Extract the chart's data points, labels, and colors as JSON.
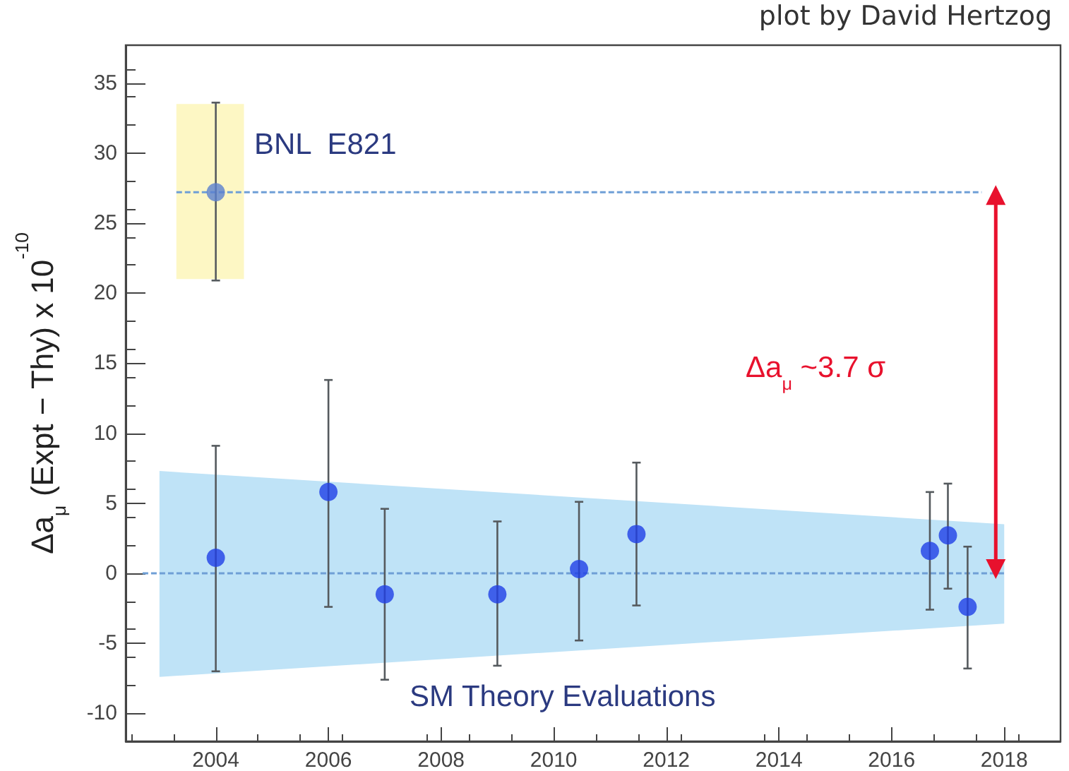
{
  "chart_data": {
    "type": "scatter",
    "ylabel": "Δa$_{μ}$ (Expt − Thy) x 10$^{-10}$",
    "xlim": [
      2002.4,
      2019
    ],
    "xticks": [
      2004,
      2006,
      2008,
      2010,
      2012,
      2014,
      2016,
      2018
    ],
    "ylim": [
      -12,
      37.7
    ],
    "yticks": [
      -10,
      -5,
      0,
      5,
      10,
      15,
      20,
      25,
      30,
      35
    ],
    "grid": false,
    "marker": "circle",
    "series": [
      {
        "type": "area",
        "color": "#bfe3f7",
        "x": [
          2003.0,
          2018.0
        ],
        "values": [
          null,
          null
        ],
        "lower": [
          -7.4,
          -3.6
        ],
        "upper": [
          7.3,
          3.5
        ]
      },
      {
        "type": "area",
        "color": "#fdf7c4",
        "x": [
          2003.3,
          2004.5
        ],
        "values": [
          null,
          null
        ],
        "lower": [
          21,
          21
        ],
        "upper": [
          33.5,
          33.5
        ]
      },
      {
        "type": "line",
        "marker": "none",
        "color": "#6f9fd6",
        "line_style": "dashed",
        "x": [
          2002.7,
          2018.0
        ],
        "values": [
          0,
          0
        ]
      },
      {
        "type": "line",
        "marker": "none",
        "color": "#6f9fd6",
        "line_style": "dashed",
        "x": [
          2003.3,
          2017.6
        ],
        "values": [
          27.2,
          27.2
        ]
      },
      {
        "color": "#5a7fd0",
        "x": [
          2004.0
        ],
        "values": [
          27.2
        ],
        "errors": [
          [
            20.9,
            33.6
          ]
        ]
      },
      {
        "color": "#1f3fe6",
        "x": [
          2004.0,
          2006.0,
          2007.0,
          2009.0,
          2010.45,
          2011.47,
          2016.68,
          2017.0,
          2017.35
        ],
        "values": [
          1.1,
          5.8,
          -1.5,
          -1.5,
          0.3,
          2.8,
          1.6,
          2.7,
          -2.4
        ],
        "errors": [
          [
            -7.0,
            9.1
          ],
          [
            -2.4,
            13.8
          ],
          [
            -7.6,
            4.6
          ],
          [
            -6.6,
            3.7
          ],
          [
            -4.8,
            5.1
          ],
          [
            -2.3,
            7.9
          ],
          [
            -2.6,
            5.8
          ],
          [
            -1.1,
            6.4
          ],
          [
            -6.8,
            1.9
          ]
        ]
      },
      {
        "type": "line",
        "color": "#e8112d",
        "marker": "triangle",
        "x": [
          2017.85,
          2017.85
        ],
        "values": [
          0.3,
          27.0
        ]
      }
    ],
    "annotations": [
      "plot by David Hertzog",
      "BNL  E821",
      "SM Theory Evaluations",
      "Δa$_{μ}$ ~3.7 σ"
    ]
  }
}
